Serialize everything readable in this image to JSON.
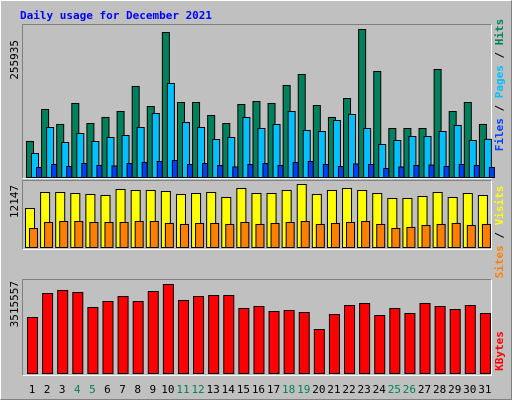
{
  "chart_data": [
    {
      "type": "bar",
      "title": "Daily usage for December 2021",
      "title_color": "#0000ff",
      "ylim": [
        0,
        255935
      ],
      "yticks": [
        255935
      ],
      "legend_separator": " / ",
      "series": [
        {
          "name": "Hits",
          "color": "#00805c",
          "values": [
            62300,
            117600,
            91700,
            128000,
            93400,
            103800,
            114100,
            157400,
            122800,
            250700,
            129700,
            129700,
            107200,
            93400,
            126200,
            131400,
            128000,
            159100,
            178100,
            124500,
            103800,
            136600,
            255935,
            183300,
            84700,
            84700,
            84700,
            186800,
            114100,
            129700,
            91700
          ]
        },
        {
          "name": "Pages",
          "color": "#00c0ff",
          "values": [
            41500,
            86460,
            60520,
            76080,
            62250,
            69170,
            72620,
            86460,
            110670,
            162540,
            95100,
            86460,
            65710,
            69170,
            103750,
            84730,
            91650,
            114130,
            81270,
            79540,
            98560,
            108940,
            84730,
            57060,
            63980,
            70900,
            70900,
            79540,
            89920,
            63980,
            66000
          ]
        },
        {
          "name": "Files",
          "color": "#0040ff",
          "values": [
            17300,
            22500,
            19000,
            24200,
            20800,
            19900,
            24200,
            25900,
            27700,
            29400,
            22500,
            24200,
            20800,
            18200,
            22500,
            24200,
            20800,
            25900,
            27700,
            22500,
            19000,
            23400,
            22500,
            15600,
            18200,
            20800,
            21600,
            19000,
            22500,
            20800,
            17300
          ]
        }
      ]
    },
    {
      "type": "bar",
      "ylim": [
        0,
        12147
      ],
      "yticks": [
        12147
      ],
      "legend_separator": " / ",
      "series": [
        {
          "name": "Visits",
          "color": "#ffff00",
          "values": [
            7520,
            10605,
            10605,
            10412,
            10220,
            10026,
            11184,
            10990,
            10990,
            10798,
            10220,
            10412,
            10605,
            9641,
            11376,
            10412,
            10412,
            10990,
            12147,
            10220,
            10990,
            11376,
            10990,
            10412,
            9448,
            9448,
            9834,
            10605,
            9641,
            10412,
            10026
          ]
        },
        {
          "name": "Sites",
          "color": "#ff8000",
          "values": [
            3660,
            4820,
            5010,
            5010,
            4820,
            4820,
            4820,
            5010,
            5010,
            4630,
            4440,
            4630,
            4630,
            4440,
            4820,
            4440,
            4630,
            4820,
            5010,
            4440,
            4630,
            4820,
            5010,
            4440,
            3660,
            3860,
            4240,
            4440,
            4630,
            4240,
            4440
          ]
        }
      ]
    },
    {
      "type": "bar",
      "ylim": [
        0,
        3515557
      ],
      "yticks": [
        3515557
      ],
      "categories": [
        "1",
        "2",
        "3",
        "4",
        "5",
        "6",
        "7",
        "8",
        "9",
        "10",
        "11",
        "12",
        "13",
        "14",
        "15",
        "16",
        "17",
        "18",
        "19",
        "20",
        "21",
        "22",
        "23",
        "24",
        "25",
        "26",
        "27",
        "28",
        "29",
        "30",
        "31"
      ],
      "category_colors": [
        "#000000",
        "#000000",
        "#000000",
        "#00805c",
        "#00805c",
        "#000000",
        "#000000",
        "#000000",
        "#000000",
        "#000000",
        "#00805c",
        "#00805c",
        "#000000",
        "#000000",
        "#000000",
        "#000000",
        "#000000",
        "#00805c",
        "#00805c",
        "#000000",
        "#000000",
        "#000000",
        "#000000",
        "#000000",
        "#00805c",
        "#00805c",
        "#000000",
        "#000000",
        "#000000",
        "#000000",
        "#000000"
      ],
      "series": [
        {
          "name": "KBytes",
          "color": "#ff0000",
          "values": [
            2212000,
            3160000,
            3279000,
            3200000,
            2607000,
            2844000,
            3042000,
            2844000,
            3239000,
            3515557,
            2884000,
            3042000,
            3081000,
            3081000,
            2568000,
            2647000,
            2449000,
            2489000,
            2410000,
            1738000,
            2331000,
            2686000,
            2765000,
            2291000,
            2568000,
            2370000,
            2765000,
            2647000,
            2528000,
            2686000,
            2370000
          ]
        }
      ]
    }
  ]
}
